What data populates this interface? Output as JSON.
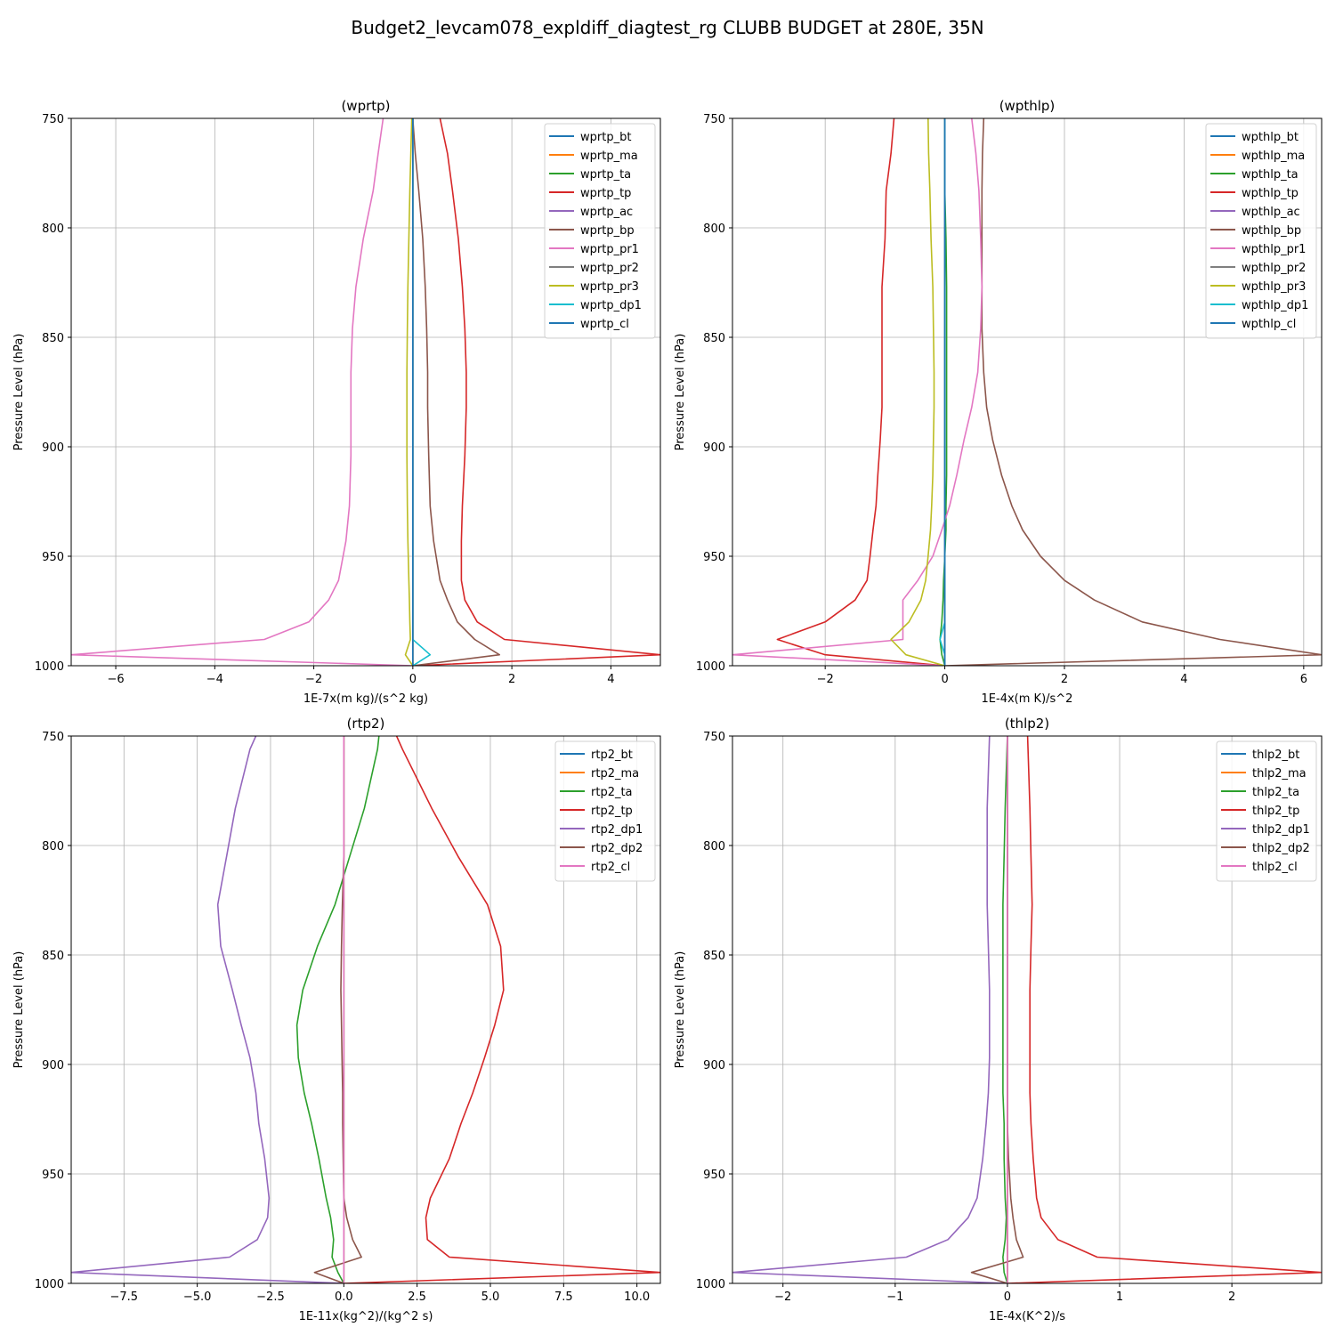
{
  "suptitle": "Budget2_levcam078_expldiff_diagtest_rg CLUBB BUDGET at 280E, 35N",
  "colors": [
    "#1f77b4",
    "#ff7f0e",
    "#2ca02c",
    "#d62728",
    "#9467bd",
    "#8c564b",
    "#e377c2",
    "#7f7f7f",
    "#bcbd22",
    "#17becf",
    "#1f77b4"
  ],
  "chart_data": [
    {
      "type": "line",
      "title": "(wprtp)",
      "xlabel": "1E-7x(m kg)/(s^2 kg)",
      "ylabel": "Pressure Level (hPa)",
      "xlim": [
        -6.9,
        5.0
      ],
      "ylim": [
        1000,
        750
      ],
      "xticks": [
        -6,
        -4,
        -2,
        0,
        2,
        4
      ],
      "xtick_labels": [
        "−6",
        "−4",
        "−2",
        "0",
        "2",
        "4"
      ],
      "yticks": [
        750,
        800,
        850,
        900,
        950,
        1000
      ],
      "grid": true,
      "legend_position": "top-right",
      "levels": [
        750,
        766,
        783,
        805,
        827,
        846,
        866,
        882,
        904,
        927,
        943,
        961,
        970,
        980,
        988,
        995,
        1000
      ],
      "series": [
        {
          "name": "wprtp_bt",
          "color": "#1f77b4",
          "values": [
            0.0,
            0.0,
            0.0,
            0.0,
            0.0,
            0.0,
            0.0,
            0.0,
            0.0,
            0.0,
            0.0,
            0.0,
            0.0,
            0.0,
            0.0,
            0.0,
            0.0
          ]
        },
        {
          "name": "wprtp_ma",
          "color": "#ff7f0e",
          "values": [
            0.0,
            0.0,
            0.0,
            0.0,
            0.0,
            0.0,
            0.0,
            0.0,
            0.0,
            0.0,
            0.0,
            0.0,
            0.0,
            0.0,
            0.0,
            0.0,
            0.0
          ]
        },
        {
          "name": "wprtp_ta",
          "color": "#2ca02c",
          "values": [
            0.0,
            0.0,
            0.0,
            0.0,
            0.0,
            0.0,
            0.0,
            0.0,
            0.0,
            0.0,
            0.0,
            0.0,
            0.0,
            0.0,
            0.0,
            0.0,
            0.0
          ]
        },
        {
          "name": "wprtp_tp",
          "color": "#d62728",
          "values": [
            0.55,
            0.7,
            0.8,
            0.92,
            1.0,
            1.05,
            1.08,
            1.08,
            1.05,
            1.0,
            0.98,
            0.98,
            1.05,
            1.3,
            1.85,
            5.0,
            0.0
          ]
        },
        {
          "name": "wprtp_ac",
          "color": "#9467bd",
          "values": [
            0.0,
            0.0,
            0.0,
            0.0,
            0.0,
            0.0,
            0.0,
            0.0,
            0.0,
            0.0,
            0.0,
            0.0,
            0.0,
            0.0,
            0.0,
            0.0,
            0.0
          ]
        },
        {
          "name": "wprtp_bp",
          "color": "#8c564b",
          "values": [
            0.0,
            0.05,
            0.12,
            0.2,
            0.25,
            0.28,
            0.3,
            0.3,
            0.32,
            0.35,
            0.42,
            0.55,
            0.7,
            0.9,
            1.25,
            1.75,
            0.0
          ]
        },
        {
          "name": "wprtp_pr1",
          "color": "#e377c2",
          "values": [
            -0.6,
            -0.7,
            -0.8,
            -1.0,
            -1.15,
            -1.22,
            -1.25,
            -1.25,
            -1.25,
            -1.28,
            -1.35,
            -1.5,
            -1.7,
            -2.1,
            -3.0,
            -6.9,
            0.0
          ]
        },
        {
          "name": "wprtp_pr2",
          "color": "#7f7f7f",
          "values": [
            0.0,
            0.0,
            0.0,
            0.0,
            0.0,
            0.0,
            0.0,
            0.0,
            0.0,
            0.0,
            0.0,
            0.0,
            0.0,
            0.0,
            0.0,
            0.0,
            0.0
          ]
        },
        {
          "name": "wprtp_pr3",
          "color": "#bcbd22",
          "values": [
            -0.02,
            -0.04,
            -0.06,
            -0.08,
            -0.1,
            -0.11,
            -0.12,
            -0.12,
            -0.12,
            -0.11,
            -0.1,
            -0.08,
            -0.07,
            -0.06,
            -0.05,
            -0.15,
            0.0
          ]
        },
        {
          "name": "wprtp_dp1",
          "color": "#17becf",
          "values": [
            0.0,
            0.0,
            0.0,
            0.0,
            0.0,
            0.0,
            0.0,
            0.0,
            0.0,
            0.0,
            0.0,
            0.0,
            0.0,
            0.0,
            0.0,
            0.35,
            0.0
          ]
        },
        {
          "name": "wprtp_cl",
          "color": "#1f77b4",
          "values": [
            0.0,
            0.0,
            0.0,
            0.0,
            0.0,
            0.0,
            0.0,
            0.0,
            0.0,
            0.0,
            0.0,
            0.0,
            0.0,
            0.0,
            0.0,
            0.0,
            0.0
          ]
        }
      ]
    },
    {
      "type": "line",
      "title": "(wpthlp)",
      "xlabel": "1E-4x(m K)/s^2",
      "ylabel": "Pressure Level (hPa)",
      "xlim": [
        -3.55,
        6.3
      ],
      "ylim": [
        1000,
        750
      ],
      "xticks": [
        -2,
        0,
        2,
        4,
        6
      ],
      "xtick_labels": [
        "−2",
        "0",
        "2",
        "4",
        "6"
      ],
      "yticks": [
        750,
        800,
        850,
        900,
        950,
        1000
      ],
      "grid": true,
      "legend_position": "top-right",
      "levels": [
        750,
        766,
        783,
        805,
        827,
        846,
        866,
        882,
        897,
        913,
        927,
        938,
        950,
        961,
        970,
        980,
        988,
        995,
        1000
      ],
      "series": [
        {
          "name": "wpthlp_bt",
          "color": "#1f77b4",
          "values": [
            0,
            0,
            0,
            0,
            0,
            0,
            0,
            0,
            0,
            0,
            0,
            0,
            0,
            0,
            0,
            0,
            0,
            0,
            0
          ]
        },
        {
          "name": "wpthlp_ma",
          "color": "#ff7f0e",
          "values": [
            0,
            0,
            0,
            0,
            0,
            0,
            0,
            0,
            0,
            0,
            0,
            0,
            0,
            0,
            0,
            0,
            0,
            0,
            0
          ]
        },
        {
          "name": "wpthlp_ta",
          "color": "#2ca02c",
          "values": [
            0.0,
            0.0,
            0.0,
            0.02,
            0.03,
            0.03,
            0.03,
            0.03,
            0.03,
            0.03,
            0.02,
            0.02,
            0.0,
            -0.02,
            -0.03,
            -0.05,
            -0.08,
            -0.05,
            0.0
          ]
        },
        {
          "name": "wpthlp_tp",
          "color": "#d62728",
          "values": [
            -0.85,
            -0.9,
            -0.98,
            -1.0,
            -1.05,
            -1.05,
            -1.05,
            -1.05,
            -1.08,
            -1.12,
            -1.15,
            -1.2,
            -1.25,
            -1.3,
            -1.5,
            -2.0,
            -2.8,
            -2.0,
            0.0
          ]
        },
        {
          "name": "wpthlp_ac",
          "color": "#9467bd",
          "values": [
            0,
            0,
            0,
            0,
            0,
            0,
            0,
            0,
            0,
            0,
            0,
            0,
            0,
            0,
            0,
            0,
            0,
            0,
            0
          ]
        },
        {
          "name": "wpthlp_bp",
          "color": "#8c564b",
          "values": [
            0.65,
            0.63,
            0.62,
            0.62,
            0.62,
            0.62,
            0.65,
            0.7,
            0.8,
            0.95,
            1.12,
            1.3,
            1.6,
            2.0,
            2.5,
            3.3,
            4.6,
            6.3,
            0.0
          ]
        },
        {
          "name": "wpthlp_pr1",
          "color": "#e377c2",
          "values": [
            0.45,
            0.52,
            0.57,
            0.6,
            0.62,
            0.6,
            0.55,
            0.45,
            0.32,
            0.2,
            0.08,
            -0.05,
            -0.2,
            -0.45,
            -0.7,
            -0.7,
            -0.7,
            -3.55,
            0.0
          ]
        },
        {
          "name": "wpthlp_pr2",
          "color": "#7f7f7f",
          "values": [
            0,
            0,
            0,
            0,
            0,
            0,
            0,
            0,
            0,
            0,
            0,
            0,
            0,
            0,
            0,
            0,
            0,
            0,
            0
          ]
        },
        {
          "name": "wpthlp_pr3",
          "color": "#bcbd22",
          "values": [
            -0.28,
            -0.27,
            -0.25,
            -0.23,
            -0.2,
            -0.19,
            -0.18,
            -0.18,
            -0.19,
            -0.2,
            -0.22,
            -0.24,
            -0.28,
            -0.32,
            -0.4,
            -0.6,
            -0.9,
            -0.65,
            0.0
          ]
        },
        {
          "name": "wpthlp_dp1",
          "color": "#17becf",
          "values": [
            0,
            0,
            0,
            0,
            0,
            0,
            0,
            0,
            0,
            0,
            0,
            0,
            0,
            0,
            0,
            0,
            -0.08,
            0.0,
            0.0
          ]
        },
        {
          "name": "wpthlp_cl",
          "color": "#1f77b4",
          "values": [
            0,
            0,
            0,
            0,
            0,
            0,
            0,
            0,
            0,
            0,
            0,
            0,
            0,
            0,
            0,
            0,
            0,
            0,
            0
          ]
        }
      ]
    },
    {
      "type": "line",
      "title": "(rtp2)",
      "xlabel": "1E-11x(kg^2)/(kg^2 s)",
      "ylabel": "Pressure Level (hPa)",
      "xlim": [
        -9.3,
        10.8
      ],
      "ylim": [
        1000,
        750
      ],
      "xticks": [
        -7.5,
        -5.0,
        -2.5,
        0.0,
        2.5,
        5.0,
        7.5,
        10.0
      ],
      "xtick_labels": [
        "−7.5",
        "−5.0",
        "−2.5",
        "0.0",
        "2.5",
        "5.0",
        "7.5",
        "10.0"
      ],
      "yticks": [
        750,
        800,
        850,
        900,
        950,
        1000
      ],
      "grid": true,
      "legend_position": "top-right",
      "levels": [
        750,
        756,
        783,
        805,
        827,
        846,
        866,
        882,
        897,
        913,
        927,
        943,
        961,
        970,
        980,
        988,
        995,
        1000
      ],
      "series": [
        {
          "name": "rtp2_bt",
          "color": "#1f77b4",
          "values": [
            0,
            0,
            0,
            0,
            0,
            0,
            0,
            0,
            0,
            0,
            0,
            0,
            0,
            0,
            0,
            0,
            0,
            0
          ]
        },
        {
          "name": "rtp2_ma",
          "color": "#ff7f0e",
          "values": [
            0,
            0,
            0,
            0,
            0,
            0,
            0,
            0,
            0,
            0,
            0,
            0,
            0,
            0,
            0,
            0,
            0,
            0
          ]
        },
        {
          "name": "rtp2_ta",
          "color": "#2ca02c",
          "values": [
            1.2,
            1.15,
            0.7,
            0.2,
            -0.3,
            -0.9,
            -1.4,
            -1.6,
            -1.55,
            -1.35,
            -1.1,
            -0.85,
            -0.6,
            -0.45,
            -0.35,
            -0.4,
            -0.2,
            0.0
          ]
        },
        {
          "name": "rtp2_tp",
          "color": "#d62728",
          "values": [
            1.8,
            2.0,
            3.0,
            3.9,
            4.9,
            5.35,
            5.45,
            5.15,
            4.8,
            4.4,
            4.0,
            3.6,
            2.95,
            2.8,
            2.85,
            3.6,
            10.8,
            0.0
          ]
        },
        {
          "name": "rtp2_dp1",
          "color": "#9467bd",
          "values": [
            -3.0,
            -3.2,
            -3.7,
            -4.0,
            -4.3,
            -4.2,
            -3.8,
            -3.5,
            -3.2,
            -3.0,
            -2.9,
            -2.7,
            -2.55,
            -2.6,
            -2.95,
            -3.9,
            -9.3,
            0.0
          ]
        },
        {
          "name": "rtp2_dp2",
          "color": "#8c564b",
          "values": [
            0,
            0,
            0,
            0,
            -0.05,
            -0.08,
            -0.1,
            -0.08,
            -0.06,
            -0.04,
            -0.04,
            -0.02,
            0.0,
            0.1,
            0.3,
            0.6,
            -1.0,
            0.0
          ]
        },
        {
          "name": "rtp2_cl",
          "color": "#e377c2",
          "values": [
            0,
            0,
            0,
            0,
            0,
            0,
            0,
            0,
            0,
            0,
            0,
            0,
            0,
            0,
            0,
            0,
            0,
            0
          ]
        }
      ]
    },
    {
      "type": "line",
      "title": "(thlp2)",
      "xlabel": "1E-4x(K^2)/s",
      "ylabel": "Pressure Level (hPa)",
      "xlim": [
        -2.45,
        2.8
      ],
      "ylim": [
        1000,
        750
      ],
      "xticks": [
        -2,
        -1,
        0,
        1,
        2
      ],
      "xtick_labels": [
        "−2",
        "−1",
        "0",
        "1",
        "2"
      ],
      "yticks": [
        750,
        800,
        850,
        900,
        950,
        1000
      ],
      "grid": true,
      "legend_position": "top-right",
      "levels": [
        750,
        783,
        805,
        827,
        846,
        866,
        882,
        897,
        913,
        927,
        943,
        961,
        970,
        980,
        988,
        995,
        1000
      ],
      "series": [
        {
          "name": "thlp2_bt",
          "color": "#1f77b4",
          "values": [
            0,
            0,
            0,
            0,
            0,
            0,
            0,
            0,
            0,
            0,
            0,
            0,
            0,
            0,
            0,
            0,
            0
          ]
        },
        {
          "name": "thlp2_ma",
          "color": "#ff7f0e",
          "values": [
            0,
            0,
            0,
            0,
            0,
            0,
            0,
            0,
            0,
            0,
            0,
            0,
            0,
            0,
            0,
            0,
            0
          ]
        },
        {
          "name": "thlp2_ta",
          "color": "#2ca02c",
          "values": [
            0.0,
            -0.02,
            -0.03,
            -0.04,
            -0.04,
            -0.04,
            -0.04,
            -0.04,
            -0.04,
            -0.03,
            -0.03,
            -0.02,
            -0.01,
            -0.02,
            -0.04,
            -0.03,
            0.0
          ]
        },
        {
          "name": "thlp2_tp",
          "color": "#d62728",
          "values": [
            0.18,
            0.2,
            0.21,
            0.22,
            0.21,
            0.2,
            0.2,
            0.2,
            0.2,
            0.21,
            0.23,
            0.26,
            0.3,
            0.45,
            0.8,
            2.8,
            0.0
          ]
        },
        {
          "name": "thlp2_dp1",
          "color": "#9467bd",
          "values": [
            -0.16,
            -0.18,
            -0.18,
            -0.18,
            -0.17,
            -0.16,
            -0.16,
            -0.16,
            -0.17,
            -0.19,
            -0.22,
            -0.27,
            -0.35,
            -0.53,
            -0.9,
            -2.45,
            0.0
          ]
        },
        {
          "name": "thlp2_dp2",
          "color": "#8c564b",
          "values": [
            0,
            0,
            0,
            0,
            0,
            0,
            0,
            0,
            0,
            0,
            0.01,
            0.03,
            0.05,
            0.08,
            0.14,
            -0.32,
            0.0
          ]
        },
        {
          "name": "thlp2_cl",
          "color": "#e377c2",
          "values": [
            0,
            0,
            0,
            0,
            0,
            0,
            0,
            0,
            0,
            0,
            0,
            0,
            0,
            0,
            0,
            0,
            0
          ]
        }
      ]
    }
  ]
}
